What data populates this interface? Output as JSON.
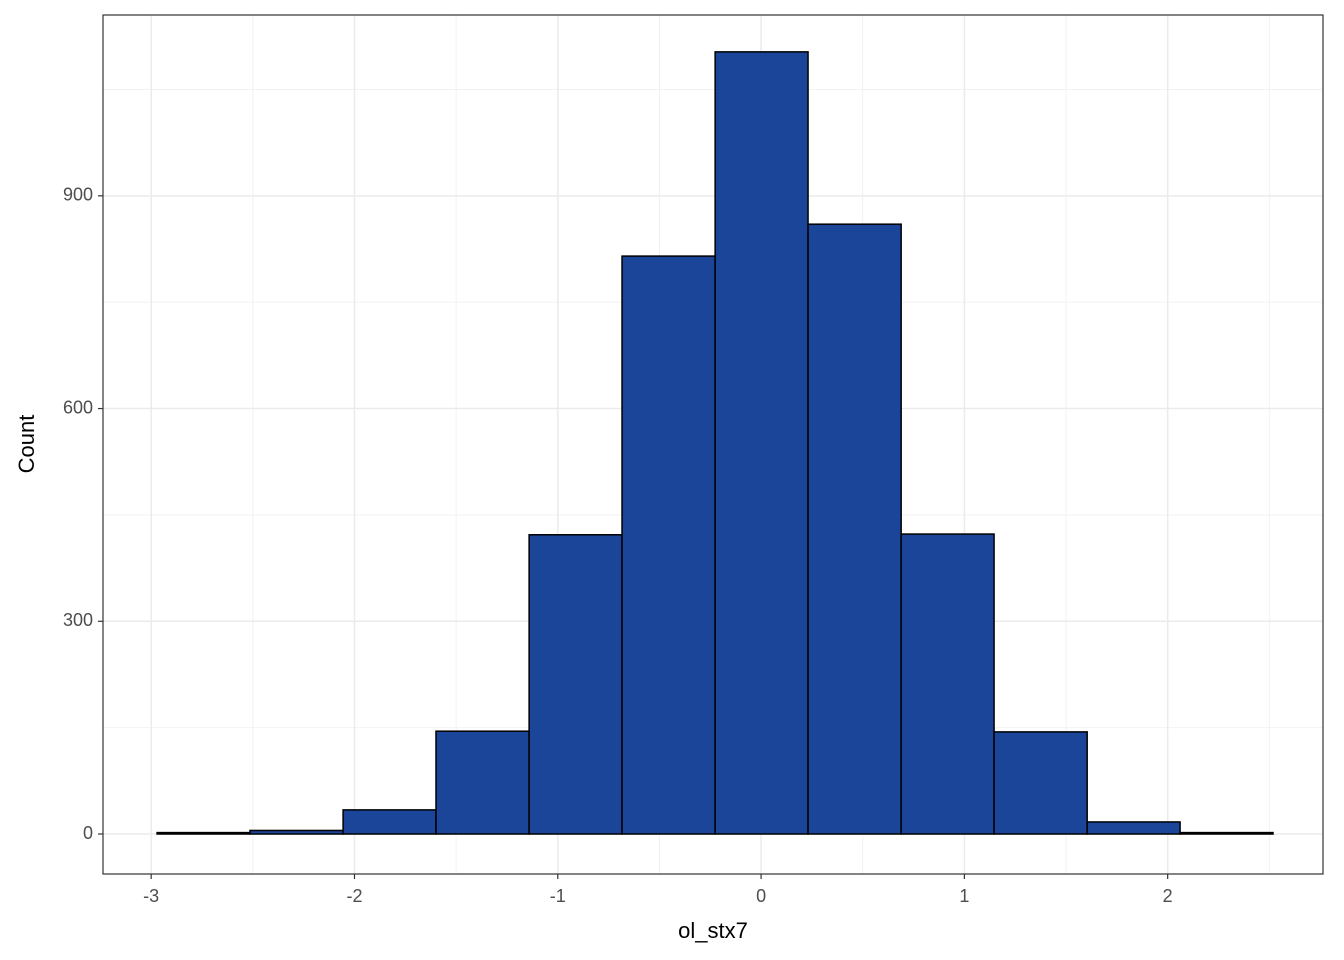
{
  "chart_data": {
    "type": "histogram",
    "x_label": "ol_stx7",
    "y_label": "Count",
    "bins": [
      -2.971,
      -2.514,
      -2.056,
      -1.599,
      -1.141,
      -0.684,
      -0.226,
      0.231,
      0.689,
      1.146,
      1.604,
      2.061,
      2.518
    ],
    "counts": [
      2,
      5,
      34,
      145,
      422,
      815,
      1103,
      860,
      423,
      144,
      17,
      2
    ],
    "color": "#1a4599",
    "edge_color": "#000000",
    "xlim": [
      -3.237,
      2.764
    ],
    "xticks": [
      -3,
      -2,
      -1,
      0,
      1,
      2
    ],
    "ylim": [
      -56.4,
      1155
    ],
    "yticks": [
      0,
      300,
      600,
      900
    ],
    "grid": true
  }
}
